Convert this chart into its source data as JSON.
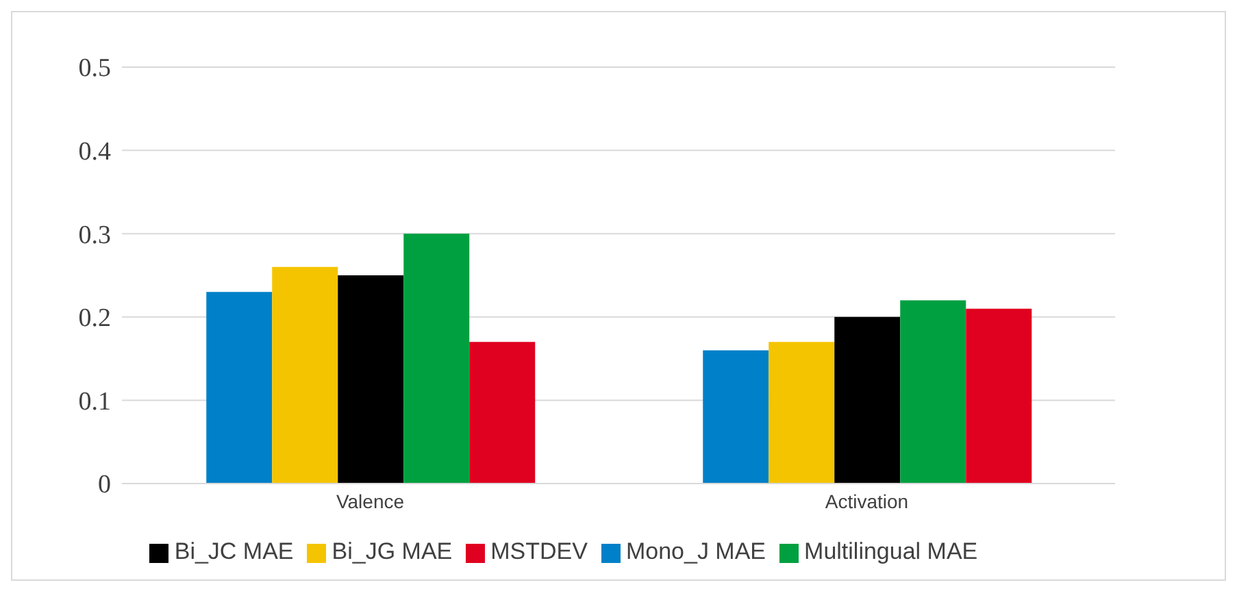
{
  "chart_data": {
    "type": "bar",
    "categories": [
      "Valence",
      "Activation"
    ],
    "series": [
      {
        "name": "Mono_J MAE",
        "color": "#0080c8",
        "values": [
          0.23,
          0.16
        ]
      },
      {
        "name": "Bi_JG MAE",
        "color": "#f5c400",
        "values": [
          0.26,
          0.17
        ]
      },
      {
        "name": "Bi_JC MAE",
        "color": "#000000",
        "values": [
          0.25,
          0.2
        ]
      },
      {
        "name": "Multilingual MAE",
        "color": "#00a040",
        "values": [
          0.3,
          0.22
        ]
      },
      {
        "name": "MSTDEV",
        "color": "#e00020",
        "values": [
          0.17,
          0.21
        ]
      }
    ],
    "ylim": [
      0,
      0.5
    ],
    "yticks": [
      0,
      0.1,
      0.2,
      0.3,
      0.4,
      0.5
    ],
    "grid": "y",
    "legend": "bottom"
  }
}
